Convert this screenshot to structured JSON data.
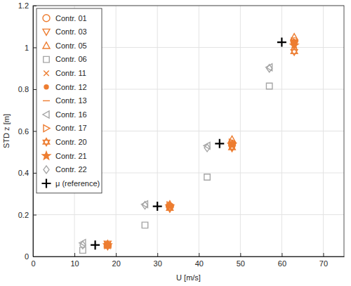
{
  "chart_data": {
    "type": "scatter",
    "x_label": "U [m/s]",
    "y_label": "STD z [m]",
    "xlim": [
      0,
      75
    ],
    "xticks": [
      0,
      10,
      20,
      30,
      40,
      50,
      60,
      70
    ],
    "ylim": [
      0,
      1.2
    ],
    "yticks": [
      0,
      0.2,
      0.4,
      0.6,
      0.8,
      1,
      1.2
    ],
    "grid": true,
    "legend": "upper-left",
    "series": [
      {
        "name": "Contr. 01",
        "color": "#ed7d31",
        "marker": "circle",
        "x": [
          18,
          33,
          48,
          63
        ],
        "values": [
          0.055,
          0.24,
          0.54,
          1.03
        ]
      },
      {
        "name": "Contr. 03",
        "color": "#ed7d31",
        "marker": "triangle-down",
        "x": [
          18,
          33,
          48,
          63
        ],
        "values": [
          0.06,
          0.235,
          0.525,
          1.02
        ]
      },
      {
        "name": "Contr. 05",
        "color": "#ed7d31",
        "marker": "triangle-up",
        "x": [
          18,
          33,
          48,
          63
        ],
        "values": [
          0.06,
          0.25,
          0.56,
          1.05
        ]
      },
      {
        "name": "Contr. 06",
        "color": "#a6a6a6",
        "marker": "square",
        "x": [
          12,
          27,
          42,
          57
        ],
        "values": [
          0.03,
          0.15,
          0.38,
          0.815
        ]
      },
      {
        "name": "Contr. 11",
        "color": "#ed7d31",
        "marker": "x",
        "x": [
          18,
          33,
          48,
          63
        ],
        "values": [
          0.055,
          0.24,
          0.54,
          1.02
        ]
      },
      {
        "name": "Contr. 12",
        "color": "#ed7d31",
        "marker": "point",
        "x": [
          18,
          33,
          48,
          63
        ],
        "values": [
          0.055,
          0.24,
          0.54,
          1.025
        ]
      },
      {
        "name": "Contr. 13",
        "color": "#ed7d31",
        "marker": "dash",
        "x": [
          18,
          33,
          48,
          63
        ],
        "values": [
          0.055,
          0.24,
          0.54,
          1.03
        ]
      },
      {
        "name": "Contr. 16",
        "color": "#a6a6a6",
        "marker": "triangle-left",
        "x": [
          12,
          27,
          42,
          57
        ],
        "values": [
          0.065,
          0.25,
          0.53,
          0.905
        ]
      },
      {
        "name": "Contr. 17",
        "color": "#ed7d31",
        "marker": "triangle-right",
        "x": [
          18,
          33,
          48,
          63
        ],
        "values": [
          0.055,
          0.245,
          0.545,
          1.03
        ]
      },
      {
        "name": "Contr. 20",
        "color": "#ed7d31",
        "marker": "hexagram",
        "x": [
          18,
          33,
          48,
          63
        ],
        "values": [
          0.05,
          0.23,
          0.52,
          0.98
        ]
      },
      {
        "name": "Contr. 21",
        "color": "#ed7d31",
        "marker": "pentagram",
        "x": [
          18,
          33,
          48,
          63
        ],
        "values": [
          0.055,
          0.24,
          0.535,
          1.01
        ]
      },
      {
        "name": "Contr. 22",
        "color": "#a6a6a6",
        "marker": "diamond",
        "x": [
          12,
          27,
          42,
          57
        ],
        "values": [
          0.055,
          0.245,
          0.52,
          0.9
        ]
      },
      {
        "name": "μ (reference)",
        "color": "#000000",
        "marker": "plus",
        "x": [
          15,
          30,
          45,
          60
        ],
        "values": [
          0.055,
          0.24,
          0.54,
          1.025
        ]
      }
    ]
  }
}
